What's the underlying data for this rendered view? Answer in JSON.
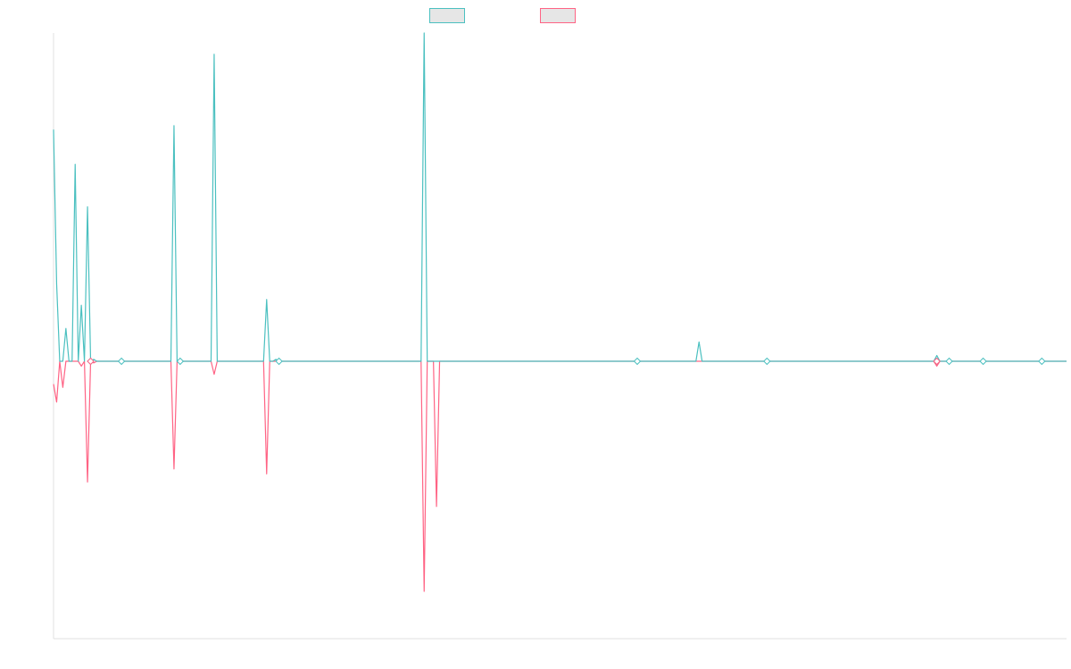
{
  "colors": {
    "series_1": "#4bc0c0",
    "series_2": "#ff6384",
    "legend_fill": "#e6e6e6",
    "axis": "#e1e1e1"
  },
  "legend": {
    "placement": "top-center",
    "items": [
      {
        "label": ""
      },
      {
        "label": ""
      }
    ]
  },
  "chart_data": {
    "type": "line",
    "title": "",
    "xlabel": "",
    "ylabel": "",
    "grid": false,
    "x_count": 329,
    "ylim": [
      -17,
      17
    ],
    "series": [
      {
        "color": "#4bc0c0",
        "points": [
          [
            0,
            12
          ],
          [
            1,
            4
          ],
          [
            2,
            0
          ],
          [
            3,
            0
          ],
          [
            4,
            1.7
          ],
          [
            5,
            0
          ],
          [
            6,
            0
          ],
          [
            7,
            10.2
          ],
          [
            8,
            0
          ],
          [
            9,
            2.9
          ],
          [
            10,
            0
          ],
          [
            11,
            8.0
          ],
          [
            12,
            0
          ],
          [
            13,
            0.1
          ],
          [
            14,
            0
          ],
          [
            38,
            0
          ],
          [
            39,
            12.2
          ],
          [
            40,
            0
          ],
          [
            51,
            0
          ],
          [
            52,
            15.9
          ],
          [
            53,
            0
          ],
          [
            68,
            0
          ],
          [
            69,
            3.2
          ],
          [
            70,
            0
          ],
          [
            71,
            0
          ],
          [
            72,
            0.1
          ],
          [
            73,
            0
          ],
          [
            119,
            0
          ],
          [
            120,
            17
          ],
          [
            121,
            0
          ],
          [
            208,
            0
          ],
          [
            209,
            1.0
          ],
          [
            210,
            0
          ],
          [
            285,
            0
          ],
          [
            286,
            0.3
          ],
          [
            287,
            0
          ],
          [
            328,
            0
          ]
        ]
      },
      {
        "color": "#ff6384",
        "points": [
          [
            0,
            -1.4
          ],
          [
            1,
            -2.5
          ],
          [
            2,
            0
          ],
          [
            3,
            -1.6
          ],
          [
            4,
            0
          ],
          [
            5,
            0
          ],
          [
            8,
            0
          ],
          [
            9,
            -0.3
          ],
          [
            10,
            0
          ],
          [
            11,
            -7.4
          ],
          [
            12,
            0
          ],
          [
            13,
            -0.1
          ],
          [
            14,
            0
          ],
          [
            38,
            0
          ],
          [
            39,
            -6.6
          ],
          [
            40,
            0
          ],
          [
            51,
            0
          ],
          [
            52,
            -0.8
          ],
          [
            53,
            0
          ],
          [
            68,
            0
          ],
          [
            69,
            -6.9
          ],
          [
            70,
            0
          ],
          [
            119,
            0
          ],
          [
            120,
            -14.1
          ],
          [
            121,
            0
          ],
          [
            123,
            0
          ],
          [
            124,
            -8.9
          ],
          [
            125,
            0
          ],
          [
            285,
            0
          ],
          [
            286,
            -0.3
          ],
          [
            287,
            0
          ],
          [
            328,
            0
          ]
        ]
      }
    ],
    "markers": [
      {
        "x": 12,
        "y": 0,
        "color": "#4bc0c0"
      },
      {
        "x": 12,
        "y": 0,
        "color": "#ff6384"
      },
      {
        "x": 22,
        "y": 0,
        "color": "#4bc0c0"
      },
      {
        "x": 41,
        "y": 0,
        "color": "#4bc0c0"
      },
      {
        "x": 73,
        "y": 0,
        "color": "#4bc0c0"
      },
      {
        "x": 189,
        "y": 0,
        "color": "#4bc0c0"
      },
      {
        "x": 231,
        "y": 0,
        "color": "#4bc0c0"
      },
      {
        "x": 286,
        "y": 0,
        "color": "#4bc0c0"
      },
      {
        "x": 286,
        "y": 0,
        "color": "#ff6384"
      },
      {
        "x": 290,
        "y": 0,
        "color": "#4bc0c0"
      },
      {
        "x": 301,
        "y": 0,
        "color": "#4bc0c0"
      },
      {
        "x": 320,
        "y": 0,
        "color": "#4bc0c0"
      }
    ]
  }
}
